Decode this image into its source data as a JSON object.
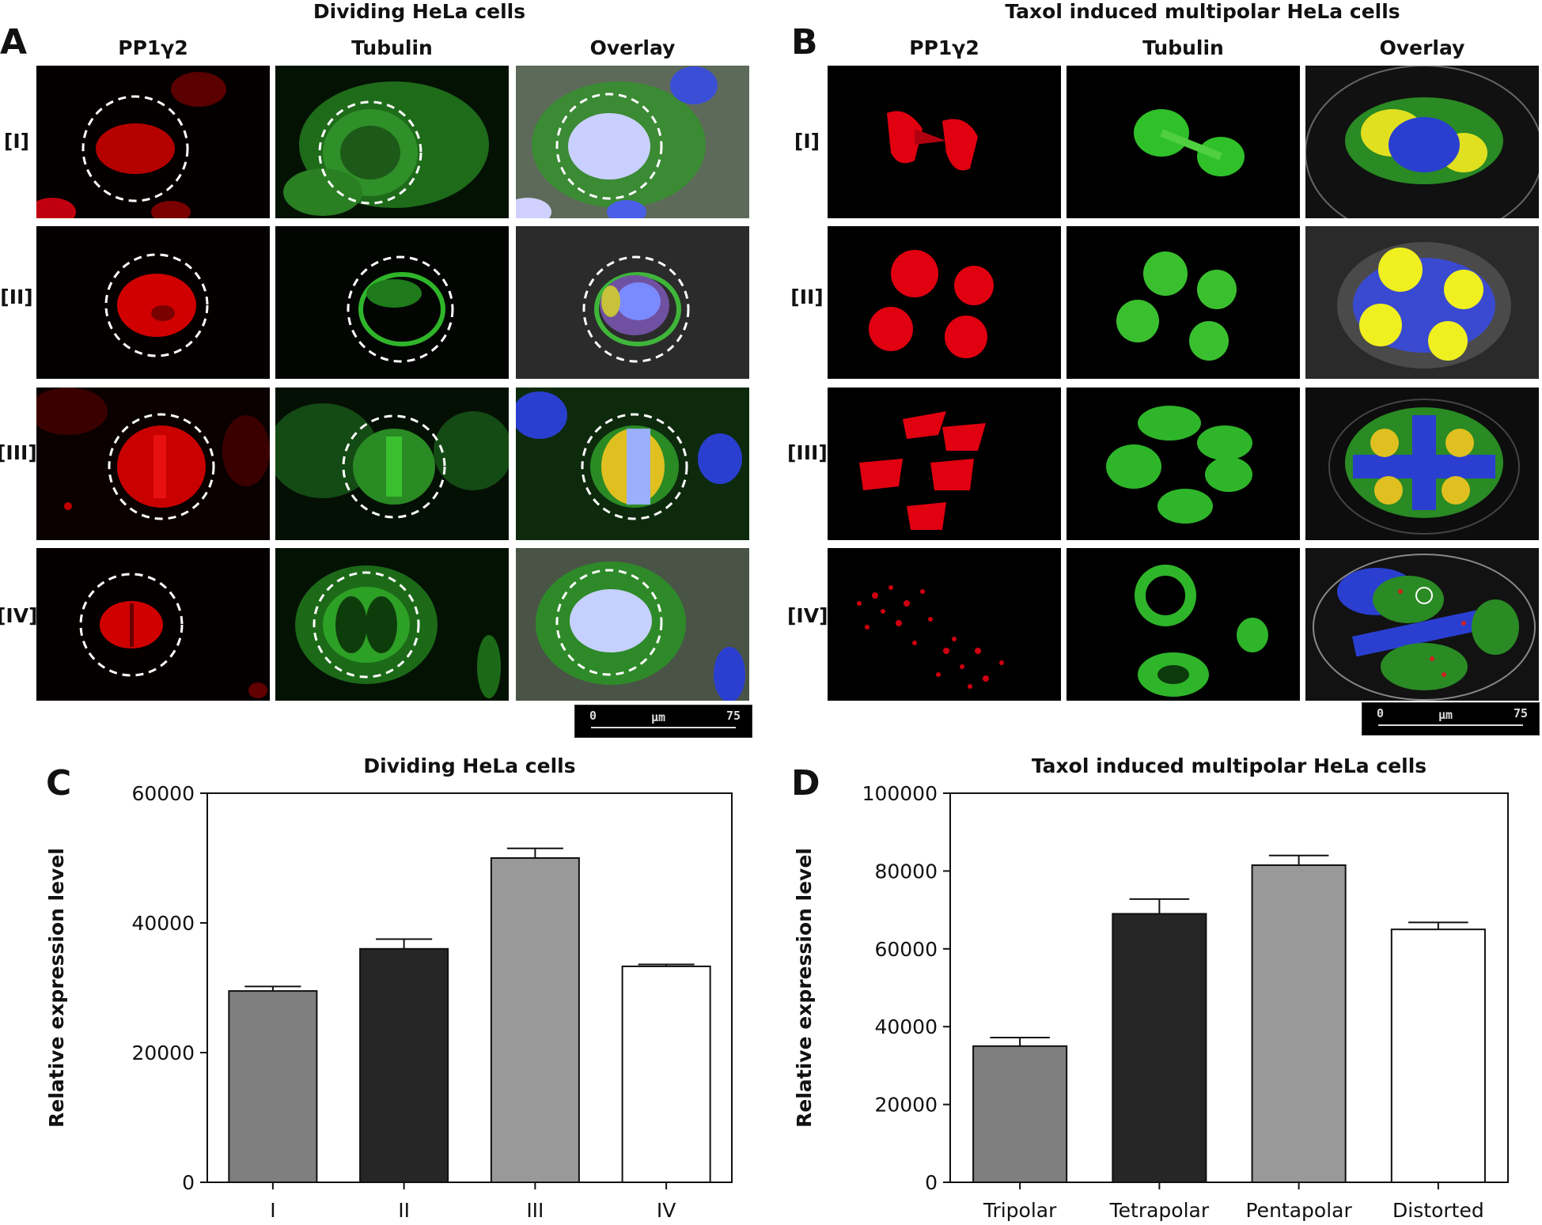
{
  "panel_a": {
    "letter": "A",
    "title": "Dividing HeLa cells",
    "columns": [
      "PP1γ2",
      "Tubulin",
      "Overlay"
    ],
    "rows": [
      "[I]",
      "[II]",
      "[III]",
      "[IV]"
    ],
    "scale_bar": {
      "start": "0",
      "unit": "μm",
      "end": "75"
    }
  },
  "panel_b": {
    "letter": "B",
    "title": "Taxol induced multipolar HeLa cells",
    "columns": [
      "PP1γ2",
      "Tubulin",
      "Overlay"
    ],
    "rows": [
      "[I]",
      "[II]",
      "[III]",
      "[IV]"
    ],
    "scale_bar": {
      "start": "0",
      "unit": "μm",
      "end": "75"
    }
  },
  "chart_data": [
    {
      "panel": "C",
      "type": "bar",
      "title": "Dividing HeLa cells",
      "xlabel": "",
      "ylabel": "Relative expression level",
      "categories": [
        "I",
        "II",
        "III",
        "IV"
      ],
      "values": [
        29500,
        36000,
        50000,
        33300
      ],
      "errors": [
        700,
        1500,
        1500,
        300
      ],
      "bar_colors": [
        "#7f7f7f",
        "#262626",
        "#999999",
        "#ffffff"
      ],
      "ylim": [
        0,
        60000
      ],
      "yticks": [
        0,
        20000,
        40000,
        60000
      ],
      "grid": false
    },
    {
      "panel": "D",
      "type": "bar",
      "title": "Taxol induced multipolar HeLa cells",
      "xlabel": "",
      "ylabel": "Relative expression level",
      "categories": [
        "Tripolar",
        "Tetrapolar",
        "Pentapolar",
        "Distorted"
      ],
      "values": [
        35000,
        69000,
        81500,
        65000
      ],
      "errors": [
        2200,
        3800,
        2500,
        1800
      ],
      "bar_colors": [
        "#7f7f7f",
        "#262626",
        "#999999",
        "#ffffff"
      ],
      "ylim": [
        0,
        100000
      ],
      "yticks": [
        0,
        20000,
        40000,
        60000,
        80000,
        100000
      ],
      "grid": false
    }
  ]
}
